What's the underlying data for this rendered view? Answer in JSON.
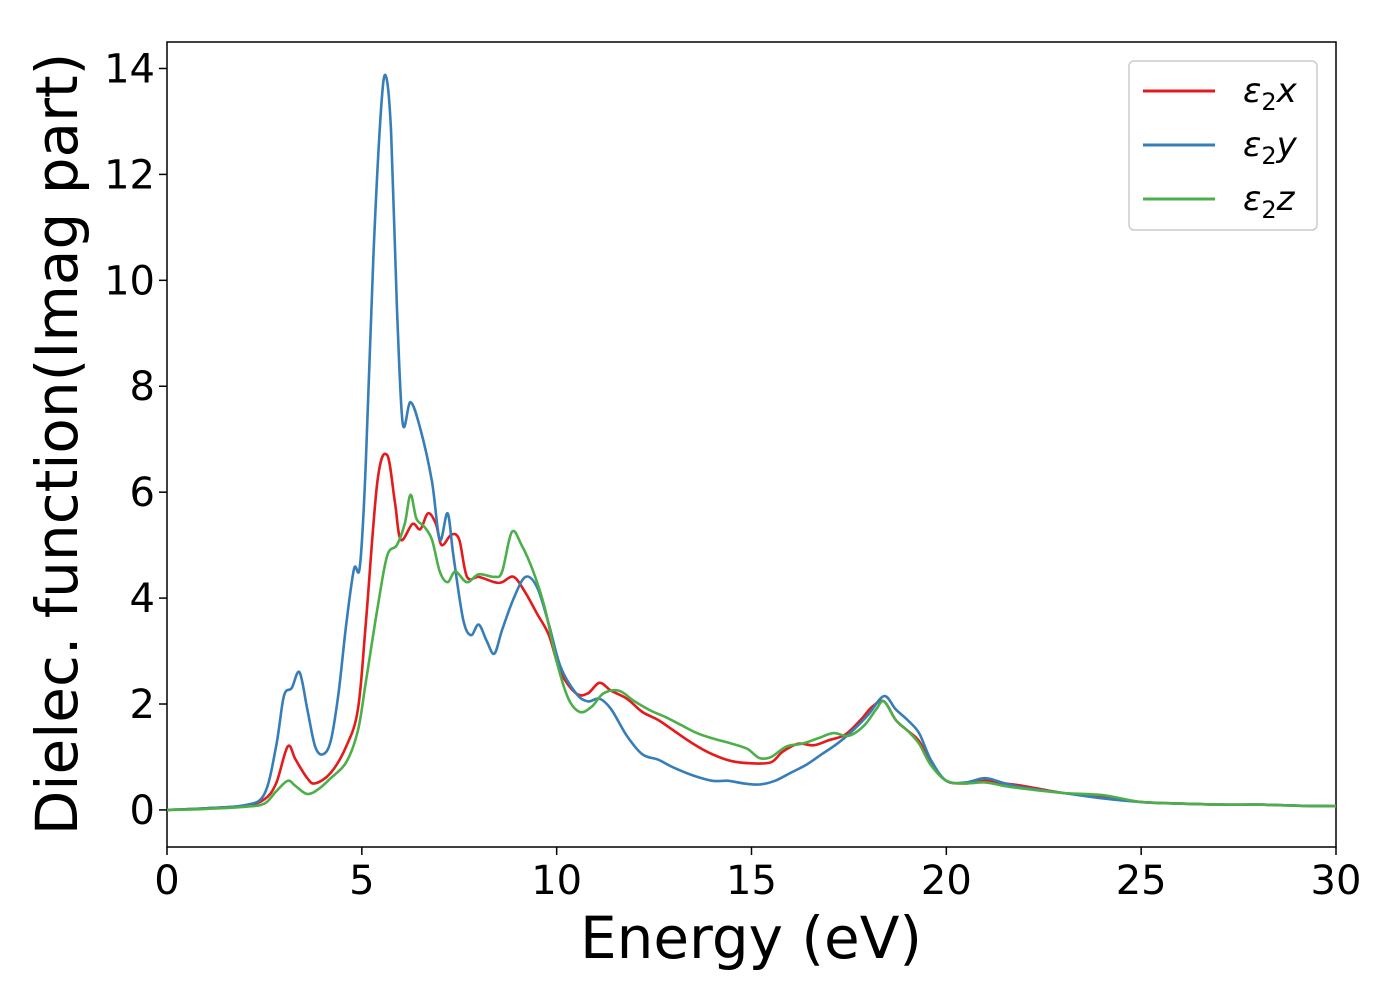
{
  "chart_data": {
    "type": "line",
    "title": "",
    "xlabel": "Energy (eV)",
    "ylabel": "Dielec. function(Imag part)",
    "xlim": [
      0,
      30
    ],
    "ylim": [
      -0.7,
      14.5
    ],
    "xticks": [
      0,
      5,
      10,
      15,
      20,
      25,
      30
    ],
    "yticks": [
      0,
      2,
      4,
      6,
      8,
      10,
      12,
      14
    ],
    "grid": false,
    "legend_position": "top-right",
    "series": [
      {
        "name": "ε₂x",
        "legend_base": "ε",
        "legend_sub": "2",
        "legend_var": "x",
        "color": "#e41a1c",
        "points": [
          [
            0,
            0.0
          ],
          [
            1,
            0.03
          ],
          [
            2,
            0.08
          ],
          [
            2.5,
            0.2
          ],
          [
            2.8,
            0.5
          ],
          [
            3.1,
            1.2
          ],
          [
            3.3,
            0.95
          ],
          [
            3.6,
            0.6
          ],
          [
            3.8,
            0.5
          ],
          [
            4.2,
            0.7
          ],
          [
            4.6,
            1.2
          ],
          [
            4.9,
            1.9
          ],
          [
            5.1,
            3.5
          ],
          [
            5.4,
            6.2
          ],
          [
            5.65,
            6.7
          ],
          [
            5.85,
            5.8
          ],
          [
            6.0,
            5.1
          ],
          [
            6.3,
            5.4
          ],
          [
            6.5,
            5.3
          ],
          [
            6.7,
            5.6
          ],
          [
            6.9,
            5.4
          ],
          [
            7.05,
            5.0
          ],
          [
            7.3,
            5.2
          ],
          [
            7.5,
            5.1
          ],
          [
            7.7,
            4.4
          ],
          [
            8.0,
            4.4
          ],
          [
            8.4,
            4.3
          ],
          [
            8.6,
            4.3
          ],
          [
            8.9,
            4.4
          ],
          [
            9.2,
            4.1
          ],
          [
            9.5,
            3.7
          ],
          [
            9.8,
            3.3
          ],
          [
            10.1,
            2.6
          ],
          [
            10.5,
            2.2
          ],
          [
            10.8,
            2.2
          ],
          [
            11.1,
            2.4
          ],
          [
            11.4,
            2.25
          ],
          [
            11.8,
            2.1
          ],
          [
            12.2,
            1.85
          ],
          [
            12.6,
            1.7
          ],
          [
            13.0,
            1.5
          ],
          [
            13.5,
            1.25
          ],
          [
            14.0,
            1.05
          ],
          [
            14.5,
            0.92
          ],
          [
            15.0,
            0.88
          ],
          [
            15.5,
            0.9
          ],
          [
            15.8,
            1.1
          ],
          [
            16.2,
            1.25
          ],
          [
            16.6,
            1.22
          ],
          [
            17.0,
            1.32
          ],
          [
            17.4,
            1.42
          ],
          [
            17.8,
            1.7
          ],
          [
            18.1,
            1.95
          ],
          [
            18.4,
            2.05
          ],
          [
            18.7,
            1.7
          ],
          [
            19.0,
            1.5
          ],
          [
            19.3,
            1.3
          ],
          [
            19.6,
            0.9
          ],
          [
            20.0,
            0.55
          ],
          [
            20.5,
            0.5
          ],
          [
            21.0,
            0.55
          ],
          [
            21.5,
            0.5
          ],
          [
            22,
            0.45
          ],
          [
            23,
            0.32
          ],
          [
            24,
            0.25
          ],
          [
            25,
            0.15
          ],
          [
            26,
            0.12
          ],
          [
            27,
            0.1
          ],
          [
            28,
            0.1
          ],
          [
            29,
            0.08
          ],
          [
            30,
            0.07
          ]
        ]
      },
      {
        "name": "ε₂y",
        "legend_base": "ε",
        "legend_sub": "2",
        "legend_var": "y",
        "color": "#377eb8",
        "points": [
          [
            0,
            0.0
          ],
          [
            1,
            0.03
          ],
          [
            2,
            0.09
          ],
          [
            2.5,
            0.3
          ],
          [
            2.8,
            1.2
          ],
          [
            3.0,
            2.15
          ],
          [
            3.2,
            2.3
          ],
          [
            3.4,
            2.6
          ],
          [
            3.6,
            1.9
          ],
          [
            3.8,
            1.2
          ],
          [
            4.0,
            1.05
          ],
          [
            4.2,
            1.3
          ],
          [
            4.4,
            2.2
          ],
          [
            4.6,
            3.5
          ],
          [
            4.8,
            4.55
          ],
          [
            4.95,
            4.6
          ],
          [
            5.1,
            6.5
          ],
          [
            5.3,
            10.5
          ],
          [
            5.5,
            13.3
          ],
          [
            5.62,
            13.85
          ],
          [
            5.75,
            12.8
          ],
          [
            5.9,
            9.5
          ],
          [
            6.05,
            7.3
          ],
          [
            6.25,
            7.7
          ],
          [
            6.5,
            7.2
          ],
          [
            6.8,
            6.2
          ],
          [
            7.0,
            5.1
          ],
          [
            7.2,
            5.6
          ],
          [
            7.35,
            4.8
          ],
          [
            7.6,
            3.6
          ],
          [
            7.8,
            3.3
          ],
          [
            8.0,
            3.5
          ],
          [
            8.2,
            3.2
          ],
          [
            8.4,
            2.95
          ],
          [
            8.6,
            3.4
          ],
          [
            8.9,
            4.0
          ],
          [
            9.2,
            4.4
          ],
          [
            9.5,
            4.2
          ],
          [
            9.8,
            3.5
          ],
          [
            10.1,
            2.7
          ],
          [
            10.5,
            2.2
          ],
          [
            10.8,
            2.05
          ],
          [
            11.1,
            2.1
          ],
          [
            11.4,
            1.9
          ],
          [
            11.8,
            1.4
          ],
          [
            12.2,
            1.05
          ],
          [
            12.6,
            0.95
          ],
          [
            13.0,
            0.8
          ],
          [
            13.5,
            0.65
          ],
          [
            14.0,
            0.55
          ],
          [
            14.4,
            0.55
          ],
          [
            14.8,
            0.5
          ],
          [
            15.2,
            0.48
          ],
          [
            15.6,
            0.55
          ],
          [
            16.0,
            0.7
          ],
          [
            16.4,
            0.85
          ],
          [
            16.8,
            1.05
          ],
          [
            17.2,
            1.25
          ],
          [
            17.6,
            1.5
          ],
          [
            18.0,
            1.8
          ],
          [
            18.4,
            2.15
          ],
          [
            18.7,
            1.9
          ],
          [
            19.0,
            1.7
          ],
          [
            19.3,
            1.45
          ],
          [
            19.6,
            0.95
          ],
          [
            20.0,
            0.55
          ],
          [
            20.5,
            0.52
          ],
          [
            21.0,
            0.6
          ],
          [
            21.5,
            0.5
          ],
          [
            22,
            0.42
          ],
          [
            23,
            0.32
          ],
          [
            24,
            0.22
          ],
          [
            25,
            0.15
          ],
          [
            26,
            0.12
          ],
          [
            27,
            0.1
          ],
          [
            28,
            0.1
          ],
          [
            29,
            0.08
          ],
          [
            30,
            0.07
          ]
        ]
      },
      {
        "name": "ε₂z",
        "legend_base": "ε",
        "legend_sub": "2",
        "legend_var": "z",
        "color": "#4daf4a",
        "points": [
          [
            0,
            0.0
          ],
          [
            1,
            0.02
          ],
          [
            2,
            0.06
          ],
          [
            2.5,
            0.12
          ],
          [
            2.8,
            0.35
          ],
          [
            3.1,
            0.55
          ],
          [
            3.3,
            0.45
          ],
          [
            3.6,
            0.3
          ],
          [
            3.9,
            0.4
          ],
          [
            4.2,
            0.6
          ],
          [
            4.6,
            0.9
          ],
          [
            4.9,
            1.5
          ],
          [
            5.1,
            2.4
          ],
          [
            5.4,
            3.8
          ],
          [
            5.65,
            4.8
          ],
          [
            5.9,
            5.0
          ],
          [
            6.1,
            5.4
          ],
          [
            6.25,
            5.95
          ],
          [
            6.4,
            5.5
          ],
          [
            6.6,
            5.35
          ],
          [
            6.8,
            5.1
          ],
          [
            7.0,
            4.5
          ],
          [
            7.2,
            4.3
          ],
          [
            7.4,
            4.5
          ],
          [
            7.7,
            4.3
          ],
          [
            8.0,
            4.45
          ],
          [
            8.4,
            4.4
          ],
          [
            8.6,
            4.5
          ],
          [
            8.85,
            5.25
          ],
          [
            9.1,
            5.0
          ],
          [
            9.4,
            4.5
          ],
          [
            9.7,
            3.8
          ],
          [
            10.0,
            2.8
          ],
          [
            10.3,
            2.1
          ],
          [
            10.6,
            1.85
          ],
          [
            10.9,
            1.95
          ],
          [
            11.2,
            2.2
          ],
          [
            11.6,
            2.25
          ],
          [
            12.0,
            2.05
          ],
          [
            12.4,
            1.88
          ],
          [
            12.8,
            1.75
          ],
          [
            13.2,
            1.6
          ],
          [
            13.6,
            1.45
          ],
          [
            14.0,
            1.35
          ],
          [
            14.5,
            1.25
          ],
          [
            14.9,
            1.15
          ],
          [
            15.2,
            0.98
          ],
          [
            15.5,
            1.0
          ],
          [
            15.9,
            1.2
          ],
          [
            16.3,
            1.25
          ],
          [
            16.7,
            1.35
          ],
          [
            17.1,
            1.45
          ],
          [
            17.5,
            1.4
          ],
          [
            17.9,
            1.6
          ],
          [
            18.2,
            1.9
          ],
          [
            18.4,
            2.05
          ],
          [
            18.7,
            1.7
          ],
          [
            19.0,
            1.5
          ],
          [
            19.3,
            1.25
          ],
          [
            19.6,
            0.85
          ],
          [
            20.0,
            0.55
          ],
          [
            20.5,
            0.5
          ],
          [
            21.0,
            0.52
          ],
          [
            21.5,
            0.45
          ],
          [
            22,
            0.4
          ],
          [
            23,
            0.32
          ],
          [
            24,
            0.28
          ],
          [
            25,
            0.15
          ],
          [
            26,
            0.12
          ],
          [
            27,
            0.1
          ],
          [
            28,
            0.1
          ],
          [
            29,
            0.08
          ],
          [
            30,
            0.07
          ]
        ]
      }
    ]
  }
}
